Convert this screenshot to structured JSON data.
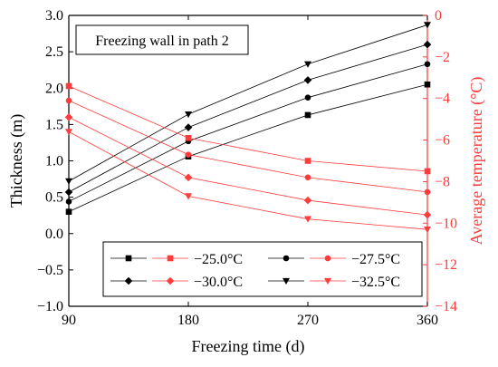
{
  "chart_data": {
    "type": "line",
    "annotation": "Freezing wall in path 2",
    "x": [
      90,
      180,
      270,
      360
    ],
    "xlabel": "Freezing time (d)",
    "xticks": [
      "90",
      "180",
      "270",
      "360"
    ],
    "xlim": [
      90,
      360
    ],
    "ylabel_left": "Thickness (m)",
    "ylim_left": [
      -1.0,
      3.0
    ],
    "yticks_left": [
      "−1.0",
      "−0.5",
      "0.0",
      "0.5",
      "1.0",
      "1.5",
      "2.0",
      "2.5",
      "3.0"
    ],
    "ylabel_right": "Average temperature (°C)",
    "ylim_right": [
      -14,
      0
    ],
    "yticks_right": [
      "−14",
      "−12",
      "−10",
      "−8",
      "−6",
      "−4",
      "−2",
      "0"
    ],
    "grid": false,
    "legend_position": "bottom-right",
    "legend_labels": [
      "−25.0°C",
      "−27.5°C",
      "−30.0°C",
      "−32.5°C"
    ],
    "series": [
      {
        "name": "−25.0°C",
        "axis": "left",
        "marker": "square",
        "color": "#000000",
        "values": [
          0.3,
          1.06,
          1.63,
          2.05
        ]
      },
      {
        "name": "−27.5°C",
        "axis": "left",
        "marker": "circle",
        "color": "#000000",
        "values": [
          0.44,
          1.27,
          1.87,
          2.33
        ]
      },
      {
        "name": "−30.0°C",
        "axis": "left",
        "marker": "diamond",
        "color": "#000000",
        "values": [
          0.57,
          1.46,
          2.11,
          2.6
        ]
      },
      {
        "name": "−32.5°C",
        "axis": "left",
        "marker": "triangle-down",
        "color": "#000000",
        "values": [
          0.72,
          1.64,
          2.33,
          2.87
        ]
      },
      {
        "name": "−25.0°C",
        "axis": "right",
        "marker": "square",
        "color": "#ff3b3b",
        "values": [
          -3.4,
          -5.9,
          -7.0,
          -7.5
        ]
      },
      {
        "name": "−27.5°C",
        "axis": "right",
        "marker": "circle",
        "color": "#ff3b3b",
        "values": [
          -4.1,
          -6.7,
          -7.8,
          -8.5
        ]
      },
      {
        "name": "−30.0°C",
        "axis": "right",
        "marker": "diamond",
        "color": "#ff3b3b",
        "values": [
          -4.9,
          -7.8,
          -8.9,
          -9.6
        ]
      },
      {
        "name": "−32.5°C",
        "axis": "right",
        "marker": "triangle-down",
        "color": "#ff3b3b",
        "values": [
          -5.6,
          -8.7,
          -9.8,
          -10.3
        ]
      }
    ],
    "colors": {
      "left_axis": "#000000",
      "right_axis": "#ff3b3b"
    }
  }
}
